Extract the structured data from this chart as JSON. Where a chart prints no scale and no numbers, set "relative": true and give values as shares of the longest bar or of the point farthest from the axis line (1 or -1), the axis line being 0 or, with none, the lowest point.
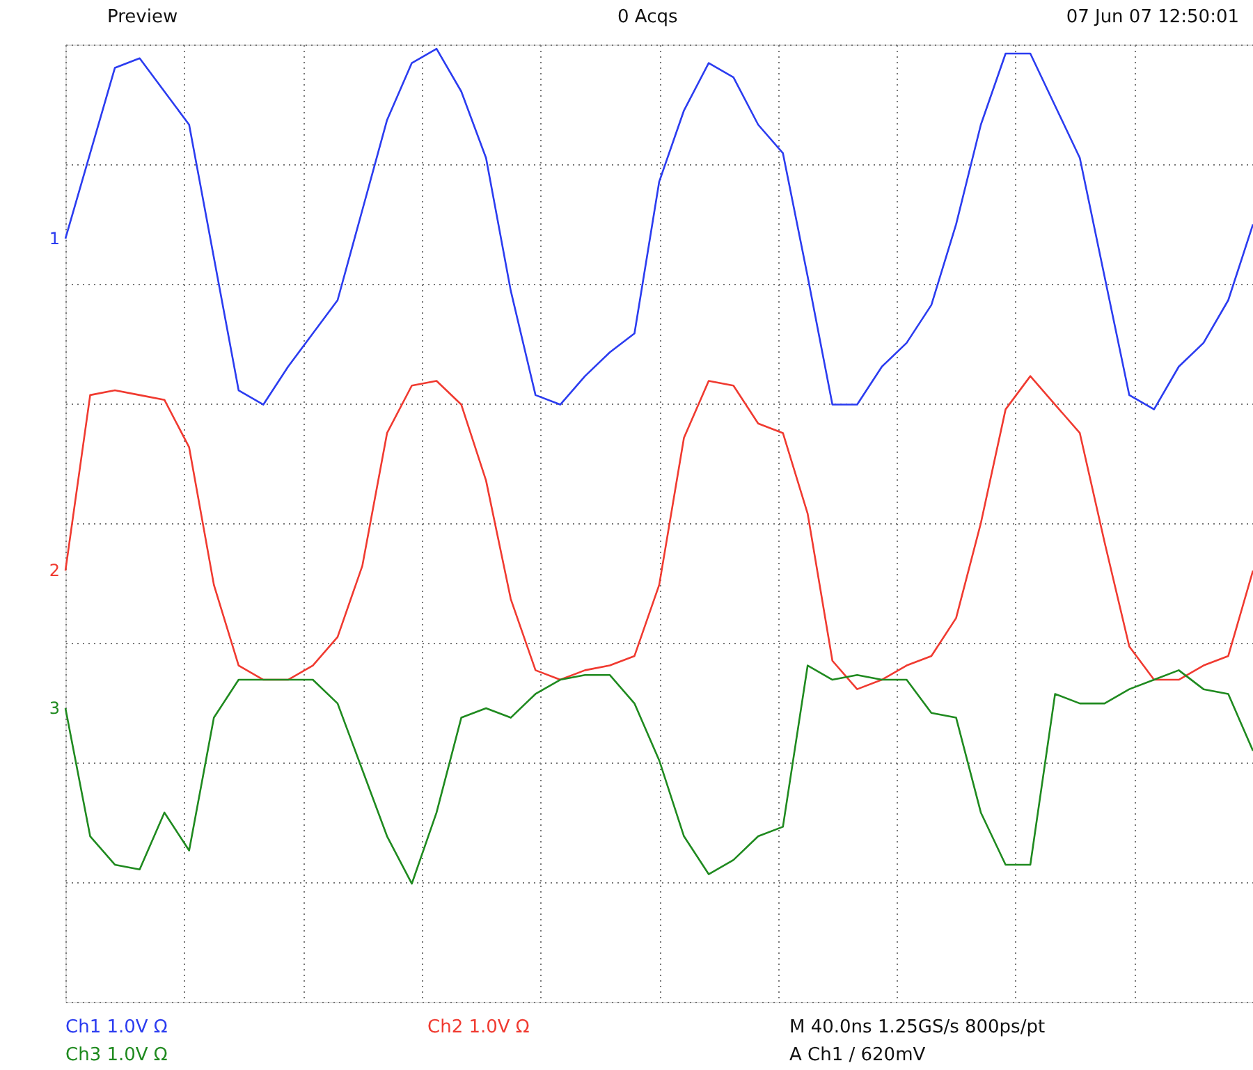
{
  "chart_data": {
    "type": "line",
    "relative": true,
    "legend": false,
    "grid": true,
    "marker": "none",
    "line_style": "solid",
    "categories": [
      null,
      null,
      null,
      null,
      null,
      null,
      null,
      null,
      null,
      null,
      null,
      null,
      null,
      null,
      null,
      null,
      null,
      null,
      null,
      null,
      null,
      null,
      null,
      null,
      null,
      null,
      null,
      null,
      null,
      null,
      null,
      null,
      null,
      null,
      null,
      null,
      null,
      null,
      null,
      null,
      null,
      null,
      null,
      null,
      null,
      null,
      null,
      null,
      null
    ],
    "series": [
      {
        "name": "1",
        "color": "#2b3cf0",
        "values": [
          0.6,
          0.78,
          0.96,
          0.98,
          0.91,
          0.84,
          0.56,
          0.28,
          0.25,
          0.33,
          0.4,
          0.47,
          0.66,
          0.85,
          0.97,
          1.0,
          0.91,
          0.77,
          0.49,
          0.27,
          0.25,
          0.31,
          0.36,
          0.4,
          0.72,
          0.87,
          0.97,
          0.94,
          0.84,
          0.78,
          0.52,
          0.25,
          0.25,
          0.33,
          0.38,
          0.46,
          0.63,
          0.84,
          0.99,
          0.99,
          0.88,
          0.77,
          0.52,
          0.27,
          0.24,
          0.33,
          0.38,
          0.47,
          0.63
        ]
      },
      {
        "name": "2",
        "color": "#f03a30",
        "values": [
          -0.1,
          0.27,
          0.28,
          0.27,
          0.26,
          0.16,
          -0.13,
          -0.3,
          -0.33,
          -0.33,
          -0.3,
          -0.24,
          -0.09,
          0.19,
          0.29,
          0.3,
          0.25,
          0.09,
          -0.16,
          -0.31,
          -0.33,
          -0.31,
          -0.3,
          -0.28,
          -0.13,
          0.18,
          0.3,
          0.29,
          0.21,
          0.19,
          0.02,
          -0.29,
          -0.35,
          -0.33,
          -0.3,
          -0.28,
          -0.2,
          0.0,
          0.24,
          0.31,
          0.25,
          0.19,
          -0.04,
          -0.26,
          -0.33,
          -0.33,
          -0.3,
          -0.28,
          -0.1
        ]
      },
      {
        "name": "3",
        "color": "#1f8a1f",
        "values": [
          -0.39,
          -0.66,
          -0.72,
          -0.73,
          -0.61,
          -0.69,
          -0.41,
          -0.33,
          -0.33,
          -0.33,
          -0.33,
          -0.38,
          -0.52,
          -0.66,
          -0.76,
          -0.61,
          -0.41,
          -0.39,
          -0.41,
          -0.36,
          -0.33,
          -0.32,
          -0.32,
          -0.38,
          -0.5,
          -0.66,
          -0.74,
          -0.71,
          -0.66,
          -0.64,
          -0.3,
          -0.33,
          -0.32,
          -0.33,
          -0.33,
          -0.4,
          -0.41,
          -0.61,
          -0.72,
          -0.72,
          -0.36,
          -0.38,
          -0.38,
          -0.35,
          -0.33,
          -0.31,
          -0.35,
          -0.36,
          -0.48
        ]
      }
    ],
    "annotations": [
      "Preview",
      "0 Acqs",
      "07 Jun 07 12:50:01",
      "Ch1 1.0V Ω",
      "Ch2 1.0V Ω",
      "Ch3 1.0V Ω",
      "M 40.0ns 1.25GS/s 800ps/pt",
      "A Ch1 / 620mV"
    ]
  }
}
